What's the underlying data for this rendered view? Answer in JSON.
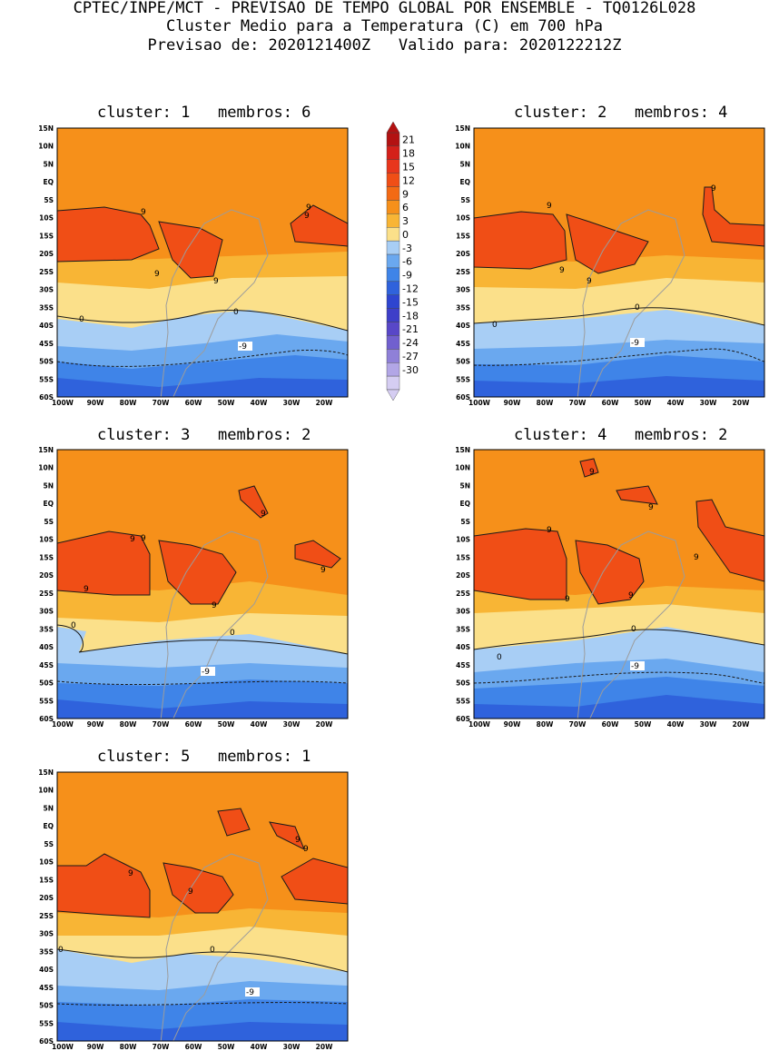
{
  "header": {
    "line1": "CPTEC/INPE/MCT - PREVISAO DE TEMPO GLOBAL POR ENSEMBLE - TQ0126L028",
    "line2": "Cluster Medio para a Temperatura (C) em 700 hPa",
    "line3": "Previsao de: 2020121400Z   Valido para: 2020122212Z"
  },
  "panels": [
    {
      "title": "cluster: 1   membros: 6",
      "warm_labels": [
        "9",
        "9",
        "9",
        "9",
        "9"
      ],
      "zero_labels": [
        "0",
        "0"
      ],
      "cold_label": "-9"
    },
    {
      "title": "cluster: 2   membros: 4",
      "warm_labels": [
        "9",
        "9",
        "9",
        "9"
      ],
      "zero_labels": [
        "0",
        "0"
      ],
      "cold_label": "-9"
    },
    {
      "title": "cluster: 3   membros: 2",
      "warm_labels": [
        "9",
        "9",
        "9",
        "9",
        "9",
        "9"
      ],
      "zero_labels": [
        "0",
        "0"
      ],
      "cold_label": "-9"
    },
    {
      "title": "cluster: 4   membros: 2",
      "warm_labels": [
        "9",
        "9",
        "9",
        "9",
        "9",
        "9"
      ],
      "zero_labels": [
        "0",
        "0"
      ],
      "cold_label": "-9"
    },
    {
      "title": "cluster: 5   membros: 1",
      "warm_labels": [
        "9",
        "9",
        "9",
        "9"
      ],
      "zero_labels": [
        "0",
        "0"
      ],
      "cold_label": "-9"
    }
  ],
  "axes": {
    "lat_ticks": [
      "15N",
      "10N",
      "5N",
      "EQ",
      "5S",
      "10S",
      "15S",
      "20S",
      "25S",
      "30S",
      "35S",
      "40S",
      "45S",
      "50S",
      "55S",
      "60S"
    ],
    "lon_ticks": [
      "100W",
      "90W",
      "80W",
      "70W",
      "60W",
      "50W",
      "40W",
      "30W",
      "20W"
    ]
  },
  "colorbar": {
    "levels": [
      "21",
      "18",
      "15",
      "12",
      "9",
      "6",
      "3",
      "0",
      "-3",
      "-6",
      "-9",
      "-12",
      "-15",
      "-18",
      "-21",
      "-24",
      "-27",
      "-30"
    ],
    "colors": [
      "#b31212",
      "#d4201a",
      "#e8361c",
      "#f04e16",
      "#f36a14",
      "#f6901a",
      "#f8b535",
      "#fbe08a",
      "#a8cef5",
      "#6aa8ef",
      "#3f84e8",
      "#2f62dc",
      "#2e45d0",
      "#3e3fc9",
      "#5847c8",
      "#7160cf",
      "#8f80d8",
      "#b2a6e6",
      "#d5cdf2"
    ]
  }
}
